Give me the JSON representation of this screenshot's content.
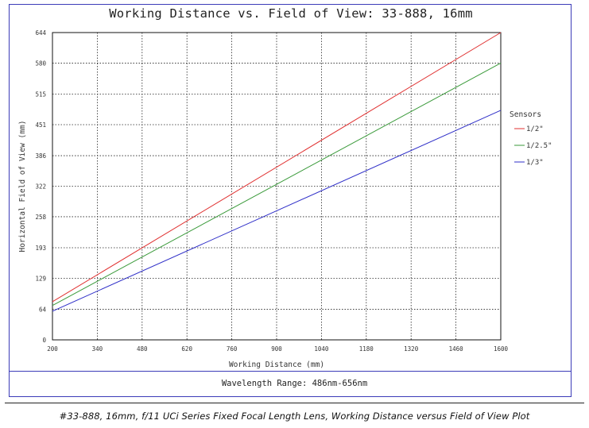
{
  "chart_data": {
    "type": "line",
    "title": "Working Distance vs. Field of View: 33-888, 16mm",
    "xlabel": "Working Distance (mm)",
    "ylabel": "Horizontal Field of View (mm)",
    "xlim": [
      200,
      1600
    ],
    "ylim": [
      0,
      644
    ],
    "x_ticks": [
      200,
      340,
      480,
      620,
      760,
      900,
      1040,
      1180,
      1320,
      1460,
      1600
    ],
    "y_ticks": [
      0,
      64,
      129,
      193,
      258,
      322,
      386,
      451,
      515,
      580,
      644
    ],
    "grid": true,
    "legend": {
      "title": "Sensors",
      "position": "right"
    },
    "series": [
      {
        "name": "1/2\"",
        "color": "#e03030",
        "x": [
          200,
          1600
        ],
        "y": [
          80,
          644
        ]
      },
      {
        "name": "1/2.5\"",
        "color": "#3a9a3a",
        "x": [
          200,
          1600
        ],
        "y": [
          72,
          580
        ]
      },
      {
        "name": "1/3\"",
        "color": "#2f2fc8",
        "x": [
          200,
          1600
        ],
        "y": [
          60,
          481
        ]
      }
    ]
  },
  "footer": {
    "wavelength": "Wavelength Range: 486nm-656nm"
  },
  "caption": "#33-888, 16mm, f/11 UCi Series Fixed Focal Length Lens, Working Distance versus Field of View Plot"
}
